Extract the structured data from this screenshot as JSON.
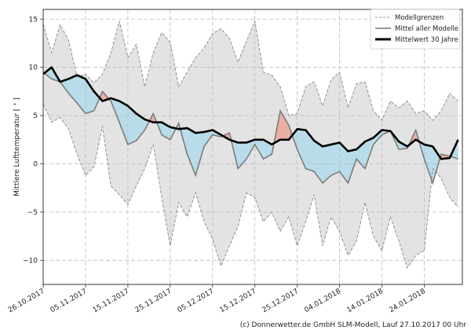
{
  "chart_data": {
    "type": "line",
    "title": "",
    "xlabel": "",
    "ylabel": "Mittlere Lufttemperatur [ ° ]",
    "ylim": [
      -12.5,
      16
    ],
    "yticks": [
      -10,
      -5,
      0,
      5,
      10,
      15
    ],
    "ytick_labels": [
      "−10",
      "−5",
      "0",
      "5",
      "10",
      "15"
    ],
    "xlim_days": [
      0,
      99
    ],
    "xticks_days": [
      0,
      10,
      20,
      30,
      40,
      50,
      60,
      70,
      80,
      90
    ],
    "xtick_labels": [
      "26.10.2017",
      "05.11.2017",
      "15.11.2017",
      "25.11.2017",
      "05.12.2017",
      "15.12.2017",
      "25.12.2017",
      "04.01.2018",
      "14.01.2018",
      "24.01.2018"
    ],
    "grid": true,
    "legend_position": "top-right",
    "x_days": [
      0,
      2,
      4,
      6,
      8,
      10,
      12,
      14,
      16,
      18,
      20,
      22,
      24,
      26,
      28,
      30,
      32,
      34,
      36,
      38,
      40,
      42,
      44,
      46,
      48,
      50,
      52,
      54,
      56,
      58,
      60,
      62,
      64,
      66,
      68,
      70,
      72,
      74,
      76,
      78,
      80,
      82,
      84,
      86,
      88,
      90,
      92,
      94,
      96,
      98
    ],
    "series": [
      {
        "name": "Modellgrenzen (oben)",
        "style": "dashed",
        "values": [
          14.5,
          11.5,
          14.4,
          12.8,
          9.0,
          9.3,
          8.4,
          9.3,
          11.5,
          14.8,
          11.0,
          12.4,
          8.0,
          11.5,
          13.6,
          12.6,
          8.0,
          9.5,
          11.0,
          12.0,
          13.5,
          14.0,
          13.0,
          10.5,
          12.7,
          14.8,
          9.5,
          9.2,
          8.0,
          5.0,
          5.2,
          8.0,
          8.5,
          6.0,
          8.7,
          9.5,
          5.8,
          8.3,
          8.5,
          5.5,
          4.5,
          6.5,
          5.8,
          6.5,
          5.2,
          5.5,
          4.5,
          5.5,
          7.3,
          6.5
        ]
      },
      {
        "name": "Modellgrenzen (unten)",
        "style": "dashed",
        "values": [
          6.2,
          4.3,
          4.8,
          3.6,
          1.0,
          -1.2,
          -0.3,
          3.9,
          -2.3,
          -3.2,
          -4.2,
          -2.3,
          -0.5,
          2.0,
          -3.5,
          -8.5,
          -4.0,
          -5.5,
          -3.0,
          -6.0,
          -7.8,
          -10.6,
          -8.5,
          -6.5,
          -3.0,
          -3.5,
          -6.0,
          -5.0,
          -7.0,
          -5.5,
          -8.5,
          -6.0,
          -3.2,
          -8.5,
          -5.5,
          -7.0,
          -9.5,
          -8.0,
          -4.0,
          -7.5,
          -9.0,
          -5.5,
          -8.0,
          -10.8,
          -9.5,
          -9.0,
          -0.5,
          -1.5,
          -3.5,
          -4.5
        ]
      },
      {
        "name": "Mittel aller Modelle",
        "style": "solid-gray",
        "values": [
          9.5,
          8.8,
          8.5,
          7.3,
          6.3,
          5.2,
          5.5,
          7.5,
          6.5,
          4.3,
          2.0,
          2.4,
          3.5,
          5.2,
          3.0,
          2.5,
          4.2,
          1.0,
          -1.2,
          1.8,
          3.0,
          2.8,
          3.2,
          -0.5,
          0.5,
          2.0,
          0.5,
          1.0,
          5.5,
          4.0,
          1.5,
          -0.5,
          -0.8,
          -2.0,
          -1.2,
          -0.8,
          -2.0,
          0.5,
          -0.5,
          2.0,
          3.0,
          3.4,
          1.5,
          1.6,
          3.5,
          0.5,
          -2.0,
          1.0,
          0.8,
          0.5
        ]
      },
      {
        "name": "Mittelwert 30 Jahre",
        "style": "thick-black",
        "values": [
          9.3,
          10.0,
          8.5,
          8.8,
          9.2,
          8.8,
          7.5,
          6.5,
          6.8,
          6.5,
          6.0,
          5.2,
          4.6,
          4.3,
          4.3,
          3.8,
          3.6,
          3.7,
          3.2,
          3.3,
          3.5,
          3.0,
          2.5,
          2.2,
          2.2,
          2.5,
          2.5,
          2.0,
          2.5,
          2.5,
          3.6,
          3.5,
          2.4,
          1.8,
          2.0,
          2.2,
          1.3,
          1.5,
          2.3,
          2.7,
          3.5,
          3.4,
          2.3,
          1.8,
          2.5,
          2.0,
          1.8,
          0.5,
          0.6,
          2.5
        ]
      }
    ],
    "fill_colors": {
      "band": "#e3e3e3",
      "below_normal": "#b8dcea",
      "above_normal": "#e8b0a3"
    },
    "legend": [
      {
        "label": "Modellgrenzen",
        "style": "dashed"
      },
      {
        "label": "Mittel aller Modelle",
        "style": "solid-gray"
      },
      {
        "label": "Mittelwert 30 Jahre",
        "style": "thick-black"
      }
    ]
  },
  "footer": "(c) Donnerwetter.de GmbH SLM-Modell, Lauf 27.10.2017 00 Uhr"
}
